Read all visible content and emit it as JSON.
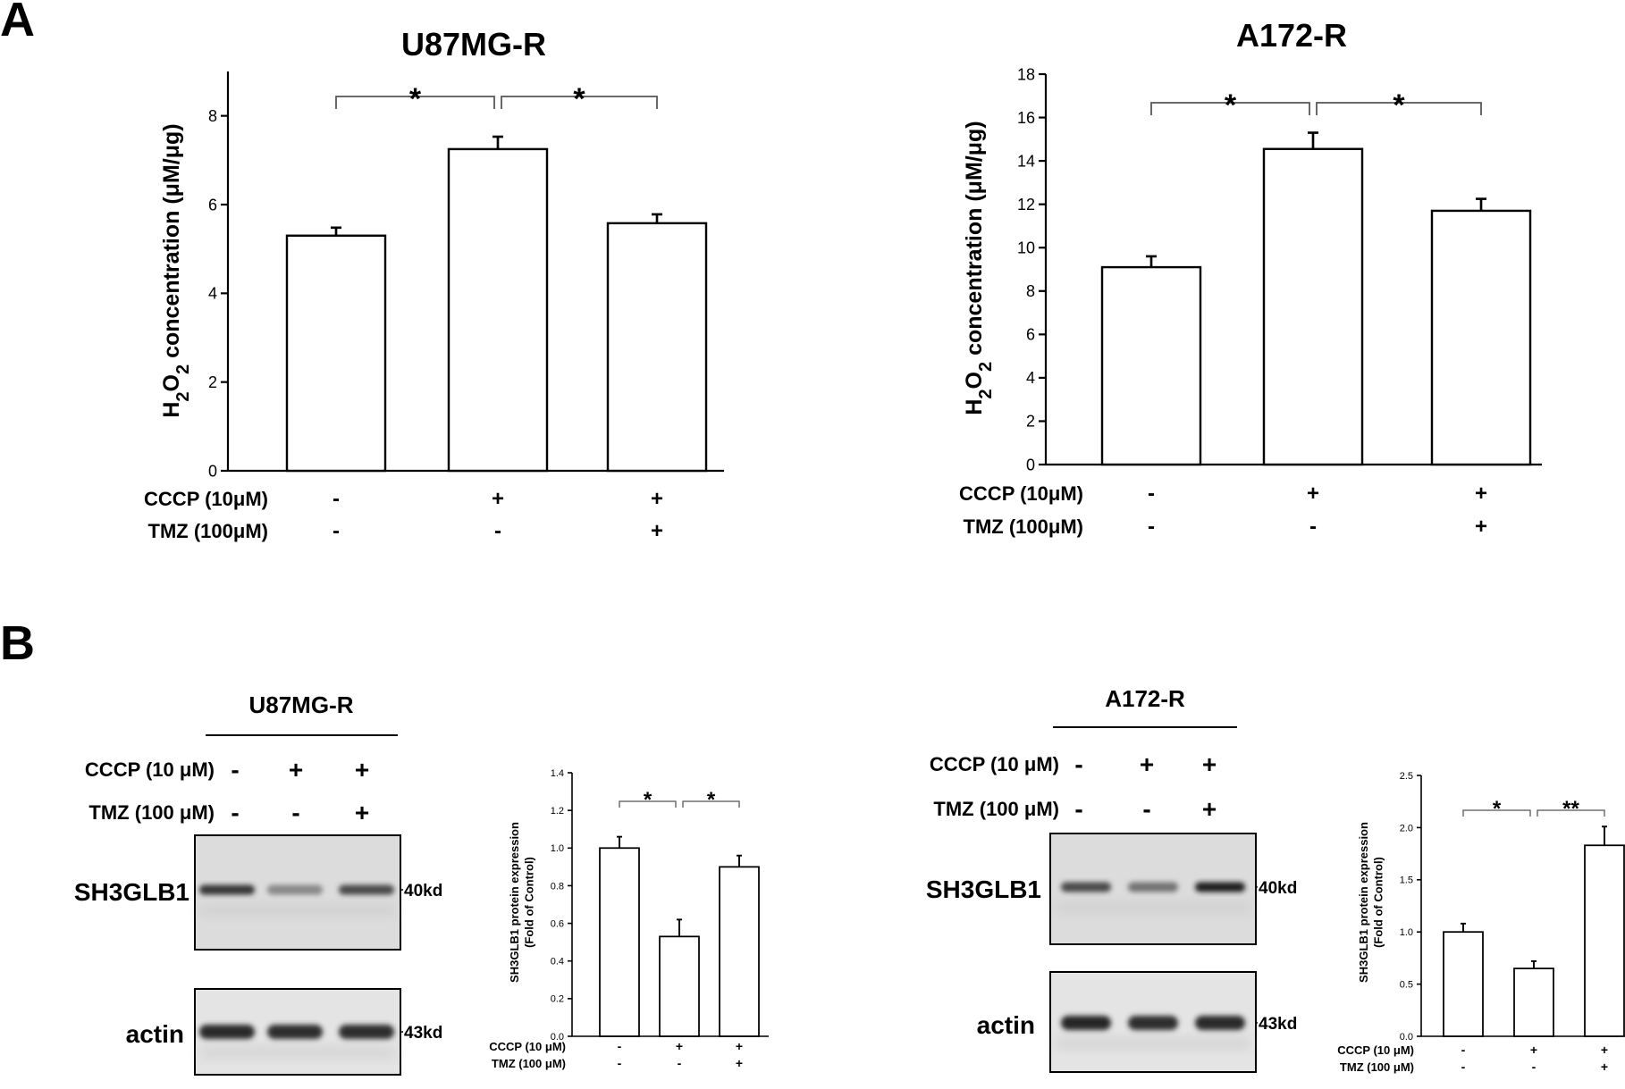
{
  "panel_labels": [
    "A",
    "B"
  ],
  "chart_data": [
    {
      "id": "a-left",
      "type": "bar",
      "title": "U87MG-R",
      "ylabel": "H2O2 concentration (μM/μg)",
      "ylabel_parts": [
        "H",
        "2",
        "O",
        "2",
        " concentration (μM/μg)"
      ],
      "ylim": [
        0,
        9
      ],
      "yticks": [
        0,
        2,
        4,
        6,
        8
      ],
      "categories": [
        "1",
        "2",
        "3"
      ],
      "values": [
        5.3,
        7.25,
        5.58
      ],
      "errors": [
        0.18,
        0.28,
        0.2
      ],
      "grid": false,
      "significance": [
        {
          "from": 0,
          "to": 1,
          "label": "*"
        },
        {
          "from": 1,
          "to": 2,
          "label": "*"
        }
      ],
      "treatments": [
        {
          "label": "CCCP (10μM)",
          "marks": [
            "-",
            "+",
            "+"
          ]
        },
        {
          "label": "TMZ (100μM)",
          "marks": [
            "-",
            "-",
            "+"
          ]
        }
      ]
    },
    {
      "id": "a-right",
      "type": "bar",
      "title": "A172-R",
      "ylabel": "H2O2 concentration (μM/μg)",
      "ylabel_parts": [
        "H",
        "2",
        "O",
        "2",
        " concentration (μM/μg)"
      ],
      "ylim": [
        0,
        18
      ],
      "yticks": [
        0,
        2,
        4,
        6,
        8,
        10,
        12,
        14,
        16,
        18
      ],
      "categories": [
        "1",
        "2",
        "3"
      ],
      "values": [
        9.1,
        14.55,
        11.7
      ],
      "errors": [
        0.5,
        0.75,
        0.55
      ],
      "grid": false,
      "significance": [
        {
          "from": 0,
          "to": 1,
          "label": "*"
        },
        {
          "from": 1,
          "to": 2,
          "label": "*"
        }
      ],
      "treatments": [
        {
          "label": "CCCP (10μM)",
          "marks": [
            "-",
            "+",
            "+"
          ]
        },
        {
          "label": "TMZ (100μM)",
          "marks": [
            "-",
            "-",
            "+"
          ]
        }
      ]
    },
    {
      "id": "b-left",
      "type": "bar",
      "title": "",
      "ylabel_lines": [
        "SH3GLB1 protein expression",
        "(Fold of Control)"
      ],
      "ylim": [
        0,
        1.4
      ],
      "yticks": [
        0.0,
        0.2,
        0.4,
        0.6,
        0.8,
        1.0,
        1.2,
        1.4
      ],
      "tick_labels": [
        "0.0",
        "0.2",
        "0.4",
        "0.6",
        "0.8",
        "1.0",
        "1.2",
        "1.4"
      ],
      "categories": [
        "1",
        "2",
        "3"
      ],
      "values": [
        1.0,
        0.53,
        0.9
      ],
      "errors": [
        0.06,
        0.09,
        0.06
      ],
      "grid": false,
      "significance": [
        {
          "from": 0,
          "to": 1,
          "label": "*"
        },
        {
          "from": 1,
          "to": 2,
          "label": "*"
        }
      ],
      "treatments": [
        {
          "label": "CCCP (10 μM)",
          "marks": [
            "-",
            "+",
            "+"
          ]
        },
        {
          "label": "TMZ (100 μM)",
          "marks": [
            "-",
            "-",
            "+"
          ]
        }
      ]
    },
    {
      "id": "b-right",
      "type": "bar",
      "title": "",
      "ylabel_lines": [
        "SH3GLB1 protein expression",
        "(Fold of Control)"
      ],
      "ylim": [
        0,
        2.5
      ],
      "yticks": [
        0.0,
        0.5,
        1.0,
        1.5,
        2.0,
        2.5
      ],
      "tick_labels": [
        "0.0",
        "0.5",
        "1.0",
        "1.5",
        "2.0",
        "2.5"
      ],
      "categories": [
        "1",
        "2",
        "3"
      ],
      "values": [
        1.0,
        0.65,
        1.83
      ],
      "errors": [
        0.08,
        0.07,
        0.18
      ],
      "grid": false,
      "significance": [
        {
          "from": 0,
          "to": 1,
          "label": "*"
        },
        {
          "from": 1,
          "to": 2,
          "label": "**"
        }
      ],
      "treatments": [
        {
          "label": "CCCP (10 μM)",
          "marks": [
            "-",
            "+",
            "+"
          ]
        },
        {
          "label": "TMZ (100 μM)",
          "marks": [
            "-",
            "-",
            "+"
          ]
        }
      ]
    }
  ],
  "blots": [
    {
      "id": "blot-left",
      "cell_line": "U87MG-R",
      "treatments": [
        {
          "label": "CCCP  (10 μM)",
          "marks": [
            "-",
            "+",
            "+"
          ]
        },
        {
          "label": "TMZ (100 μM)",
          "marks": [
            "-",
            "-",
            "+"
          ]
        }
      ],
      "rows": [
        {
          "protein": "SH3GLB1",
          "size": "40kd",
          "intensity": [
            0.85,
            0.45,
            0.75
          ]
        },
        {
          "protein": "actin",
          "size": "43kd",
          "intensity": [
            0.9,
            0.88,
            0.88
          ]
        }
      ]
    },
    {
      "id": "blot-right",
      "cell_line": "A172-R",
      "treatments": [
        {
          "label": "CCCP  (10 μM)",
          "marks": [
            "-",
            "+",
            "+"
          ]
        },
        {
          "label": "TMZ (100 μM)",
          "marks": [
            "-",
            "-",
            "+"
          ]
        }
      ],
      "rows": [
        {
          "protein": "SH3GLB1",
          "size": "40kd",
          "intensity": [
            0.75,
            0.55,
            0.95
          ]
        },
        {
          "protein": "actin",
          "size": "43kd",
          "intensity": [
            0.92,
            0.88,
            0.9
          ]
        }
      ]
    }
  ]
}
